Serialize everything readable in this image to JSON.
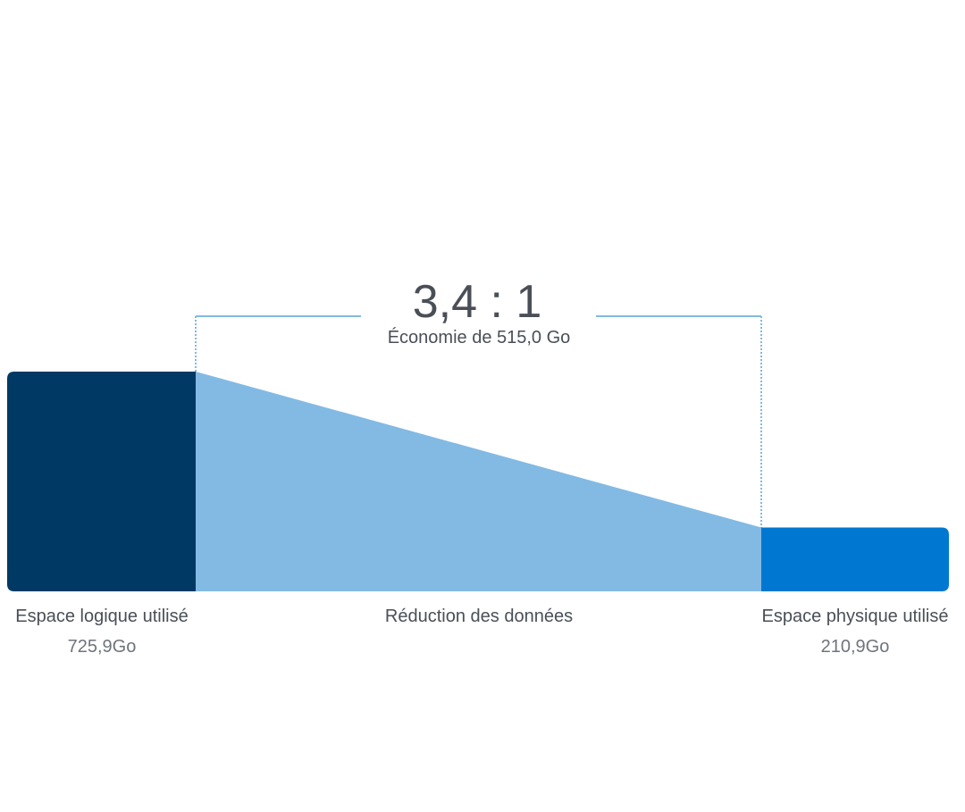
{
  "chart_data": {
    "type": "bar",
    "ratio": "3,4 : 1",
    "savings_label": "Économie de 515,0 Go",
    "savings_value": 515.0,
    "unit": "Go",
    "reduction_label": "Réduction des données",
    "categories": [
      "Espace logique utilisé",
      "Espace physique utilisé"
    ],
    "values": [
      725.9,
      210.9
    ],
    "value_labels": [
      "725,9Go",
      "210,9Go"
    ],
    "colors": {
      "logical": "#003964",
      "reduction": "#82bae4",
      "physical": "#0078d2",
      "bracket": "#82bae4",
      "text": "#4a4f57",
      "value_text": "#6f747b"
    }
  }
}
